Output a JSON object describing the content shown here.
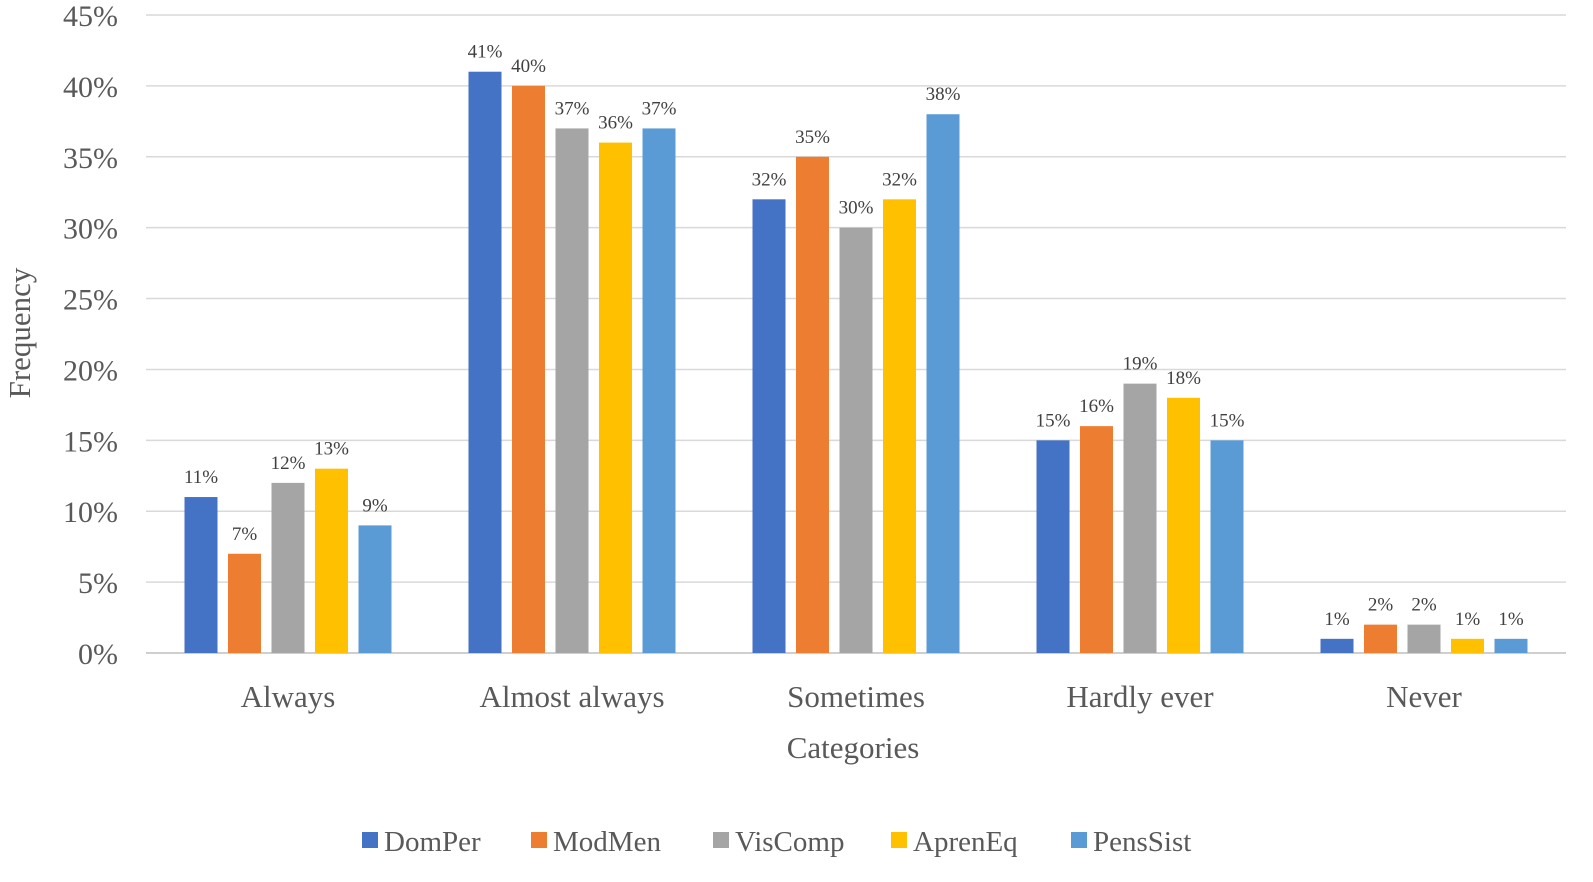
{
  "chart_data": {
    "type": "bar",
    "title": "",
    "xlabel": "Categories",
    "ylabel": "Frequency",
    "ylim": [
      0,
      45
    ],
    "y_ticks": [
      "0%",
      "5%",
      "10%",
      "15%",
      "20%",
      "25%",
      "30%",
      "35%",
      "40%",
      "45%"
    ],
    "y_tick_values": [
      0,
      5,
      10,
      15,
      20,
      25,
      30,
      35,
      40,
      45
    ],
    "categories": [
      "Always",
      "Almost always",
      "Sometimes",
      "Hardly ever",
      "Never"
    ],
    "series": [
      {
        "name": "DomPer",
        "color": "#4472c4",
        "values": [
          11,
          41,
          32,
          15,
          1
        ],
        "labels": [
          "11%",
          "41%",
          "32%",
          "15%",
          "1%"
        ]
      },
      {
        "name": "ModMen",
        "color": "#ed7d31",
        "values": [
          7,
          40,
          35,
          16,
          2
        ],
        "labels": [
          "7%",
          "40%",
          "35%",
          "16%",
          "2%"
        ]
      },
      {
        "name": "VisComp",
        "color": "#a5a5a5",
        "values": [
          12,
          37,
          30,
          19,
          2
        ],
        "labels": [
          "12%",
          "37%",
          "30%",
          "19%",
          "2%"
        ]
      },
      {
        "name": "AprenEq",
        "color": "#ffc000",
        "values": [
          13,
          36,
          32,
          18,
          1
        ],
        "labels": [
          "13%",
          "36%",
          "32%",
          "18%",
          "1%"
        ]
      },
      {
        "name": "PensSist",
        "color": "#5b9bd5",
        "values": [
          9,
          37,
          38,
          15,
          1
        ],
        "labels": [
          "9%",
          "37%",
          "38%",
          "15%",
          "1%"
        ]
      }
    ],
    "grid": true,
    "legend_position": "bottom"
  }
}
